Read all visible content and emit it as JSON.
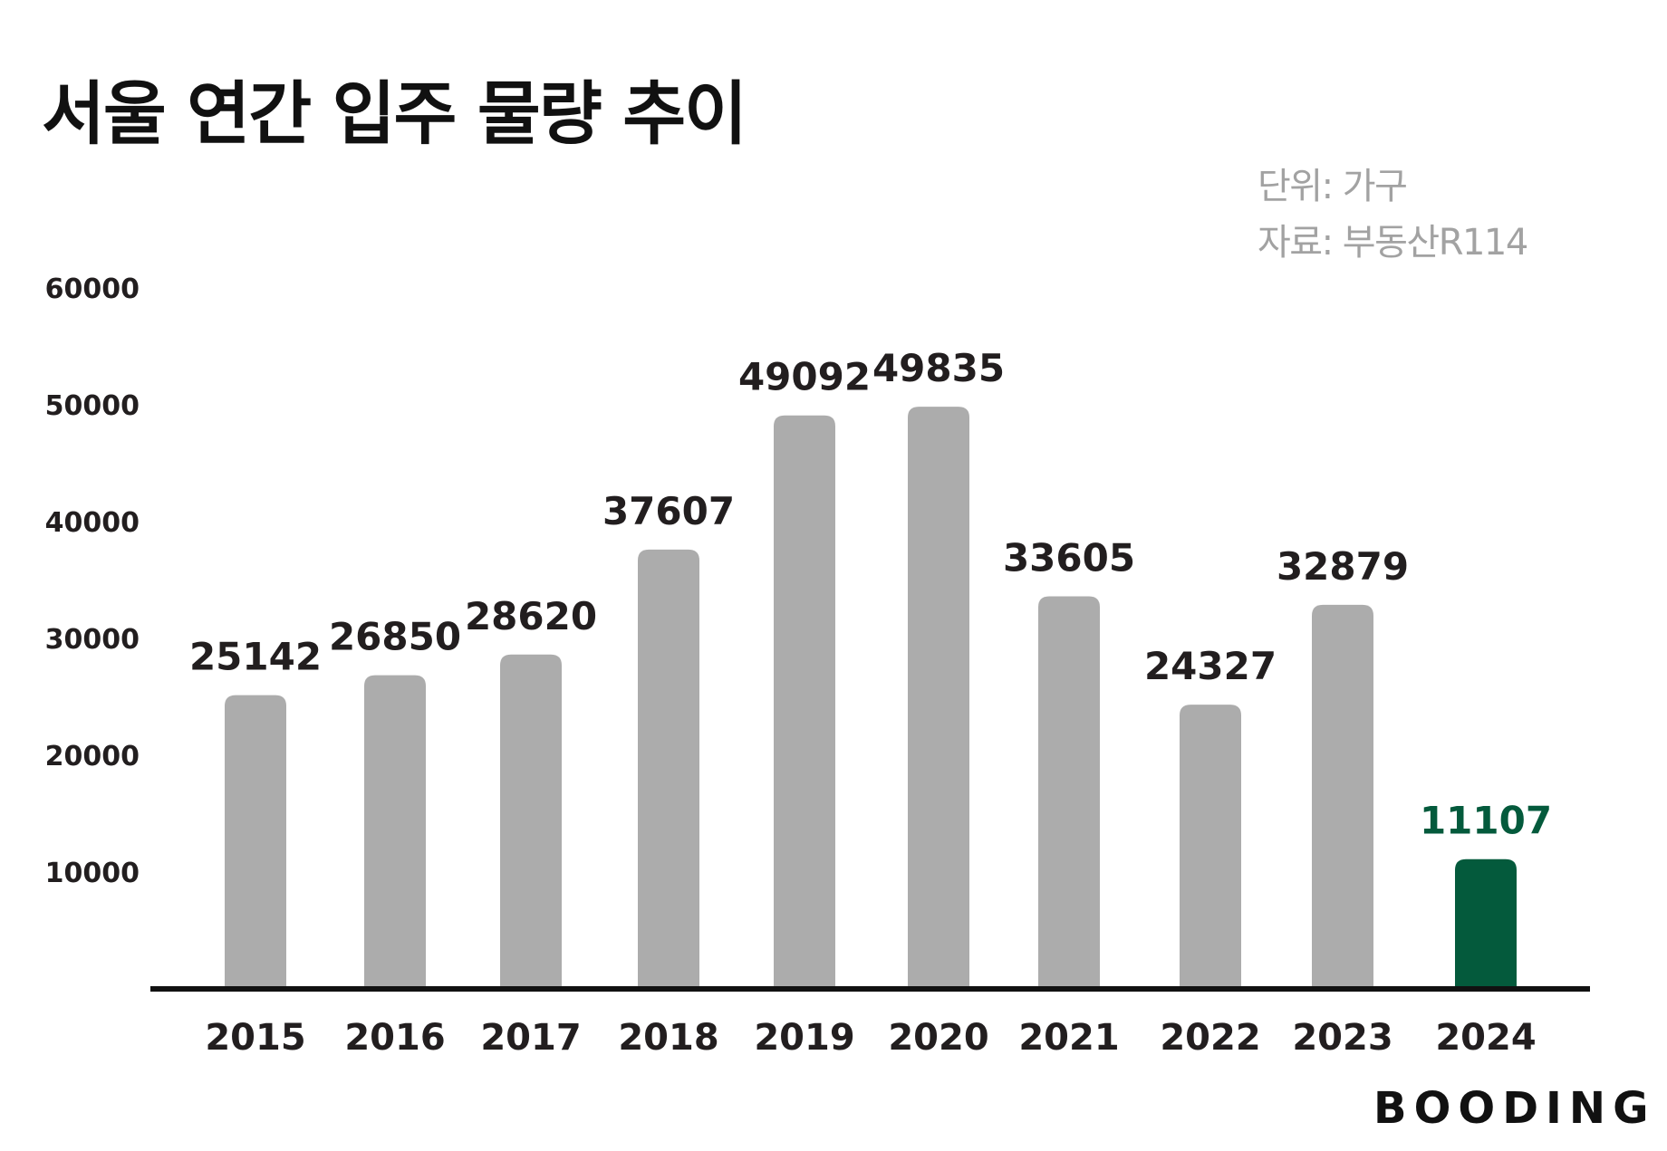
{
  "title": "서울 연간 입주 물량 추이",
  "unit_note": "단위: 가구",
  "source_note": "자료: 부동산R114",
  "logo_text": "BOODING",
  "colors": {
    "bar_default": "#acacac",
    "bar_highlight": "#045a3c",
    "label_highlight": "#045a3c",
    "text": "#221e1f",
    "axis": "#111111"
  },
  "chart_data": {
    "type": "bar",
    "categories": [
      "2015",
      "2016",
      "2017",
      "2018",
      "2019",
      "2020",
      "2021",
      "2022",
      "2023",
      "2024"
    ],
    "values": [
      25142,
      26850,
      28620,
      37607,
      49092,
      49835,
      33605,
      24327,
      32879,
      11107
    ],
    "highlight": [
      "2024"
    ],
    "yticks": [
      10000,
      20000,
      30000,
      40000,
      50000,
      60000
    ],
    "ylim": [
      0,
      60000
    ],
    "grid": false,
    "data_labels": true
  }
}
